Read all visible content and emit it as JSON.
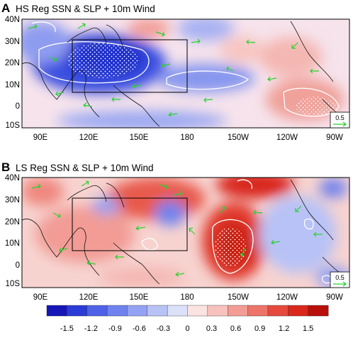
{
  "panels": [
    {
      "letter": "A",
      "title": "HS Reg SSN & SLP + 10m Wind",
      "lat_labels": [
        "40N",
        "30N",
        "20N",
        "10N",
        "0",
        "10S"
      ],
      "lon_labels": [
        "90E",
        "120E",
        "150E",
        "180",
        "150W",
        "120W",
        "90W"
      ],
      "reference_vector": "0.5",
      "pattern": "negative anomaly over tropical western Pacific, positive over eastern Pacific"
    },
    {
      "letter": "B",
      "title": "LS Reg SSN & SLP + 10m Wind",
      "lat_labels": [
        "40N",
        "30N",
        "20N",
        "10N",
        "0",
        "10S"
      ],
      "lon_labels": [
        "90E",
        "120E",
        "150E",
        "180",
        "150W",
        "120W",
        "90W"
      ],
      "reference_vector": "0.5",
      "pattern": "positive anomaly over western and central Pacific"
    }
  ],
  "colorbar": {
    "tick_labels": [
      "-1.5",
      "-1.2",
      "-0.9",
      "-0.6",
      "-0.3",
      "0",
      "0.3",
      "0.6",
      "0.9",
      "1.2",
      "1.5"
    ],
    "colors": [
      "#1515b8",
      "#2a3bd6",
      "#4d62e6",
      "#6f82ee",
      "#93a2f2",
      "#b8c2f6",
      "#dce1fa",
      "#fbe3e2",
      "#f7c2be",
      "#f29c95",
      "#ec7468",
      "#e54a3c",
      "#d9281b",
      "#b80f0a"
    ]
  },
  "colors": {
    "vector": "#29d12f",
    "contour": "#ffffff",
    "box": "#000000"
  }
}
